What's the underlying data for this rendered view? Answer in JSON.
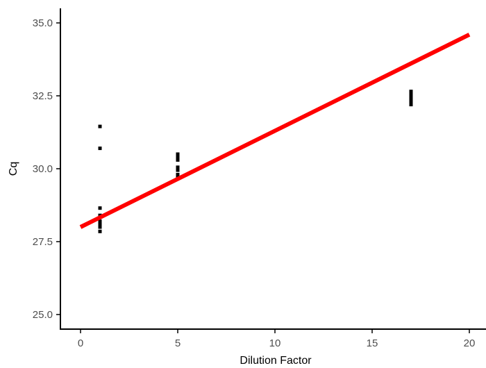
{
  "chart_data": {
    "type": "scatter",
    "title": "",
    "xlabel": "Dilution Factor",
    "ylabel": "Cq",
    "xlim": [
      -1,
      20
    ],
    "ylim": [
      24.6,
      35.5
    ],
    "x_ticks": [
      0,
      5,
      10,
      15,
      20
    ],
    "x_tick_labels": [
      "0",
      "5",
      "10",
      "15",
      "20"
    ],
    "y_ticks": [
      25.0,
      27.5,
      30.0,
      32.5,
      35.0
    ],
    "y_tick_labels": [
      "25.0",
      "27.5",
      "30.0",
      "32.5",
      "35.0"
    ],
    "grid": false,
    "points": [
      {
        "x": 1,
        "y": 31.45
      },
      {
        "x": 1,
        "y": 30.7
      },
      {
        "x": 1,
        "y": 28.65
      },
      {
        "x": 1,
        "y": 28.4
      },
      {
        "x": 1,
        "y": 28.2
      },
      {
        "x": 1,
        "y": 28.1
      },
      {
        "x": 1,
        "y": 28.0
      },
      {
        "x": 1,
        "y": 27.85
      },
      {
        "x": 5,
        "y": 30.5
      },
      {
        "x": 5,
        "y": 30.4
      },
      {
        "x": 5,
        "y": 30.3
      },
      {
        "x": 5,
        "y": 30.05
      },
      {
        "x": 5,
        "y": 29.95
      },
      {
        "x": 5,
        "y": 29.8
      },
      {
        "x": 5,
        "y": 29.75
      },
      {
        "x": 17,
        "y": 32.65
      },
      {
        "x": 17,
        "y": 32.55
      },
      {
        "x": 17,
        "y": 32.45
      },
      {
        "x": 17,
        "y": 32.35
      },
      {
        "x": 17,
        "y": 32.25
      },
      {
        "x": 17,
        "y": 32.2
      }
    ],
    "fit_line": {
      "x": [
        0,
        20
      ],
      "y": [
        28.0,
        34.6
      ],
      "color": "#ff0000"
    },
    "point_color": "#000000"
  }
}
